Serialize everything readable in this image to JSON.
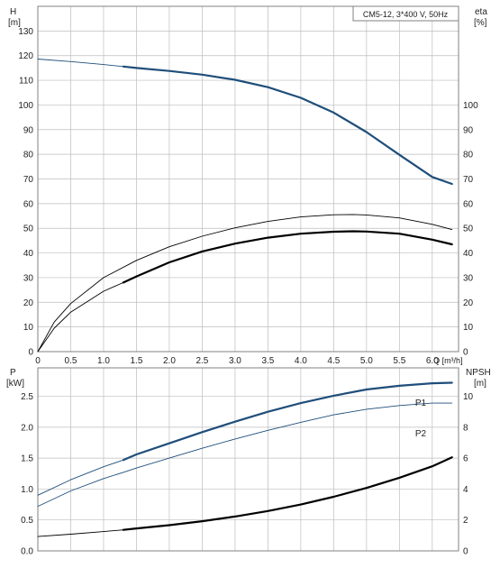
{
  "colors": {
    "blue": "#1f4e7a",
    "black": "#000000",
    "grid": "#bdbdbd",
    "frame": "#808080"
  },
  "chart_data": [
    {
      "type": "line",
      "title": "CM5-12, 3*400 V, 50Hz",
      "xlabel": "Q [m³/h]",
      "ylabel": "H [m]",
      "y2label": "eta [%]",
      "xlim": [
        0,
        6.4
      ],
      "ylim": [
        0,
        140
      ],
      "y2lim": [
        0,
        140
      ],
      "grid": true,
      "x_ticks": [
        "0",
        "0.5",
        "1.0",
        "1.5",
        "2.0",
        "2.5",
        "3.0",
        "3.5",
        "4.0",
        "4.5",
        "5.0",
        "5.5",
        "6.0"
      ],
      "y_ticks": [
        "0",
        "10",
        "20",
        "30",
        "40",
        "50",
        "60",
        "70",
        "80",
        "90",
        "100",
        "110",
        "120",
        "130"
      ],
      "y2_ticks": [
        "0",
        "10",
        "20",
        "30",
        "40",
        "50",
        "60",
        "70",
        "80",
        "90",
        "100"
      ],
      "series": [
        {
          "color": "#1f4e7a",
          "width": 0.9,
          "axis": "left",
          "x": [
            0,
            0.5,
            1.0,
            1.3
          ],
          "y": [
            118.6,
            117.6,
            116.4,
            115.6
          ]
        },
        {
          "color": "#1f4e7a",
          "width": 2.2,
          "axis": "left",
          "x": [
            1.3,
            1.5,
            2.0,
            2.5,
            3.0,
            3.5,
            4.0,
            4.5,
            5.0,
            5.5,
            6.0,
            6.3
          ],
          "y": [
            115.6,
            115.0,
            113.8,
            112.3,
            110.2,
            107.2,
            102.9,
            96.9,
            89.0,
            79.8,
            70.8,
            68.0
          ]
        },
        {
          "color": "#000000",
          "width": 0.9,
          "axis": "left",
          "x": [
            0,
            0.25,
            0.5,
            1.0,
            1.5,
            2.0,
            2.5,
            3.0,
            3.5,
            4.0,
            4.5,
            4.8,
            5.0,
            5.5,
            6.0,
            6.3
          ],
          "y": [
            0,
            12.0,
            19.5,
            30.0,
            37.0,
            42.5,
            46.8,
            50.2,
            52.8,
            54.6,
            55.5,
            55.6,
            55.4,
            54.2,
            51.6,
            49.5
          ]
        },
        {
          "color": "#000000",
          "width": 0.9,
          "axis": "left",
          "x": [
            0,
            0.25,
            0.5,
            1.0,
            1.3
          ],
          "y": [
            0,
            9.5,
            16.0,
            24.5,
            28.0
          ]
        },
        {
          "color": "#000000",
          "width": 2.2,
          "axis": "left",
          "x": [
            1.3,
            1.5,
            2.0,
            2.5,
            3.0,
            3.5,
            4.0,
            4.5,
            4.8,
            5.0,
            5.5,
            6.0,
            6.3
          ],
          "y": [
            28.0,
            30.5,
            36.2,
            40.6,
            43.8,
            46.2,
            47.8,
            48.6,
            48.8,
            48.7,
            47.8,
            45.4,
            43.5
          ]
        }
      ]
    },
    {
      "type": "line",
      "xlabel": "",
      "ylabel": "P [kW]",
      "y2label": "NPSH [m]",
      "xlim": [
        0,
        6.4
      ],
      "ylim": [
        0,
        2.96
      ],
      "y2lim": [
        0,
        11.84
      ],
      "grid": true,
      "y_ticks": [
        "0.0",
        "0.5",
        "1.0",
        "1.5",
        "2.0",
        "2.5"
      ],
      "y2_ticks": [
        "0",
        "2",
        "4",
        "6",
        "8",
        "10"
      ],
      "labels": [
        "P1",
        "P2"
      ],
      "series": [
        {
          "name": "P1",
          "color": "#1f4e7a",
          "width": 0.9,
          "axis": "left",
          "x": [
            0,
            0.5,
            1.0,
            1.3
          ],
          "y": [
            0.9,
            1.15,
            1.36,
            1.47
          ]
        },
        {
          "name": "P1",
          "color": "#1f4e7a",
          "width": 2.2,
          "axis": "left",
          "x": [
            1.3,
            1.5,
            2.0,
            2.5,
            3.0,
            3.5,
            4.0,
            4.5,
            5.0,
            5.5,
            6.0,
            6.3
          ],
          "y": [
            1.47,
            1.56,
            1.74,
            1.92,
            2.09,
            2.25,
            2.39,
            2.51,
            2.61,
            2.67,
            2.71,
            2.72
          ]
        },
        {
          "name": "P2",
          "color": "#1f4e7a",
          "width": 0.9,
          "axis": "left",
          "x": [
            0,
            0.5,
            1.0,
            1.3,
            1.5,
            2.0,
            2.5,
            3.0,
            3.5,
            4.0,
            4.5,
            5.0,
            5.5,
            6.0,
            6.3
          ],
          "y": [
            0.72,
            0.97,
            1.17,
            1.27,
            1.34,
            1.5,
            1.66,
            1.81,
            1.95,
            2.08,
            2.2,
            2.29,
            2.35,
            2.39,
            2.39
          ]
        },
        {
          "color": "#000000",
          "width": 0.9,
          "axis": "right",
          "x": [
            0,
            0.5,
            1.0,
            1.3
          ],
          "y": [
            0.93,
            1.08,
            1.25,
            1.36
          ]
        },
        {
          "color": "#000000",
          "width": 2.2,
          "axis": "right",
          "x": [
            1.3,
            1.5,
            2.0,
            2.5,
            3.0,
            3.5,
            4.0,
            4.5,
            5.0,
            5.5,
            6.0,
            6.3
          ],
          "y": [
            1.36,
            1.45,
            1.66,
            1.92,
            2.22,
            2.58,
            3.0,
            3.5,
            4.07,
            4.73,
            5.47,
            6.05
          ]
        }
      ]
    }
  ]
}
